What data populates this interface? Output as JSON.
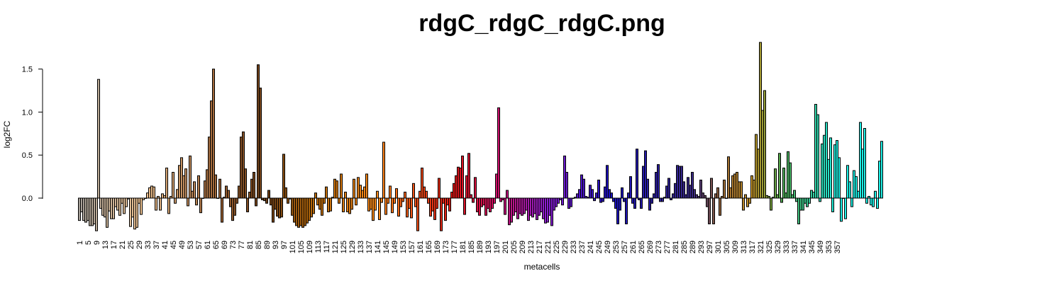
{
  "chart_data": {
    "type": "bar",
    "title": "rdgC_rdgC_rdgC.png",
    "xlabel": "metacells",
    "ylabel": "log2FC",
    "ylim": [
      -0.45,
      1.85
    ],
    "yticks": [
      0.0,
      0.5,
      1.0,
      1.5
    ],
    "ytick_labels": [
      "0.0",
      "0.5",
      "1.0",
      "1.5"
    ],
    "xtick_labels": [
      "1",
      "5",
      "9",
      "13",
      "17",
      "21",
      "25",
      "29",
      "33",
      "37",
      "41",
      "45",
      "49",
      "53",
      "57",
      "61",
      "65",
      "69",
      "73",
      "77",
      "81",
      "85",
      "89",
      "93",
      "97",
      "101",
      "105",
      "109",
      "113",
      "117",
      "121",
      "125",
      "129",
      "133",
      "137",
      "141",
      "145",
      "149",
      "153",
      "157",
      "161",
      "165",
      "169",
      "173",
      "177",
      "181",
      "185",
      "189",
      "193",
      "197",
      "201",
      "205",
      "209",
      "213",
      "217",
      "221",
      "225",
      "229",
      "233",
      "237",
      "241",
      "245",
      "249",
      "253",
      "257",
      "261",
      "265",
      "269",
      "273",
      "277",
      "281",
      "285",
      "289",
      "293",
      "297",
      "301",
      "305",
      "309",
      "313",
      "317",
      "321",
      "325",
      "329",
      "333",
      "337",
      "341",
      "345",
      "349",
      "353",
      "357"
    ],
    "palette_stops": [
      "#a8a29a",
      "#f2c694",
      "#9c6234",
      "#6e3f17",
      "#b86a0a",
      "#ff8c1a",
      "#e01616",
      "#d01068",
      "#8a1ed2",
      "#1a12c2",
      "#3a2a86",
      "#9c6a36",
      "#c89628",
      "#4fa84f",
      "#1ff0e6"
    ],
    "palette_positions": [
      0,
      30,
      66,
      88,
      110,
      140,
      176,
      196,
      220,
      250,
      288,
      302,
      316,
      330,
      357
    ],
    "values": [
      -0.26,
      -0.16,
      -0.26,
      -0.28,
      -0.26,
      -0.32,
      -0.32,
      -0.3,
      -0.38,
      1.38,
      -0.12,
      -0.2,
      -0.22,
      -0.34,
      -0.15,
      -0.24,
      -0.24,
      -0.1,
      -0.14,
      -0.2,
      -0.06,
      -0.18,
      -0.1,
      -0.01,
      -0.33,
      -0.22,
      -0.36,
      -0.34,
      -0.06,
      -0.19,
      -0.02,
      0.0,
      0.06,
      0.12,
      0.14,
      0.13,
      -0.14,
      0.02,
      -0.14,
      0.05,
      0.03,
      0.35,
      -0.18,
      0.02,
      0.3,
      -0.06,
      0.1,
      0.38,
      0.47,
      0.26,
      0.34,
      -0.09,
      0.49,
      0.08,
      0.19,
      -0.08,
      0.26,
      -0.17,
      0.0,
      0.2,
      0.33,
      0.71,
      1.13,
      1.5,
      0.27,
      0.0,
      0.22,
      -0.28,
      0.01,
      0.14,
      0.09,
      -0.1,
      -0.26,
      -0.2,
      -0.06,
      0.14,
      0.71,
      0.77,
      0.34,
      -0.16,
      0.07,
      0.22,
      0.3,
      -0.09,
      1.55,
      1.28,
      -0.02,
      -0.03,
      -0.06,
      0.09,
      -0.08,
      -0.28,
      -0.13,
      -0.21,
      -0.23,
      -0.22,
      0.51,
      0.12,
      -0.06,
      -0.01,
      -0.2,
      -0.28,
      -0.32,
      -0.34,
      -0.32,
      -0.34,
      -0.32,
      -0.29,
      -0.26,
      -0.22,
      -0.18,
      0.06,
      -0.08,
      -0.13,
      -0.2,
      -0.06,
      0.13,
      -0.16,
      -0.15,
      0.01,
      0.22,
      0.2,
      -0.06,
      0.28,
      -0.16,
      0.07,
      -0.16,
      -0.18,
      -0.13,
      0.22,
      -0.08,
      0.24,
      0.15,
      0.09,
      0.13,
      0.28,
      -0.15,
      -0.13,
      -0.26,
      -0.14,
      0.08,
      -0.25,
      -0.05,
      0.65,
      -0.19,
      -0.06,
      0.14,
      -0.17,
      -0.06,
      0.11,
      -0.21,
      -0.1,
      -0.04,
      0.07,
      -0.22,
      -0.12,
      -0.23,
      0.17,
      -0.1,
      -0.38,
      0.08,
      0.35,
      0.13,
      0.08,
      -0.06,
      -0.21,
      -0.15,
      -0.25,
      -0.12,
      0.23,
      -0.38,
      -0.06,
      -0.26,
      -0.08,
      -0.15,
      0.07,
      0.17,
      0.26,
      0.36,
      0.35,
      0.49,
      -0.19,
      0.26,
      0.52,
      0.04,
      -0.05,
      0.24,
      -0.16,
      -0.2,
      -0.1,
      -0.08,
      -0.2,
      -0.12,
      -0.16,
      -0.12,
      -0.06,
      0.28,
      1.05,
      -0.04,
      -0.02,
      -0.19,
      0.09,
      -0.31,
      -0.28,
      -0.2,
      -0.16,
      -0.24,
      -0.18,
      -0.2,
      -0.18,
      -0.14,
      -0.26,
      -0.2,
      -0.22,
      -0.18,
      -0.25,
      -0.2,
      -0.16,
      -0.24,
      -0.29,
      -0.28,
      -0.2,
      -0.32,
      -0.14,
      -0.1,
      -0.06,
      -0.02,
      -0.08,
      0.49,
      0.3,
      -0.12,
      -0.1,
      0.0,
      0.01,
      0.05,
      0.1,
      0.27,
      0.22,
      0.02,
      0.01,
      0.15,
      0.1,
      -0.03,
      0.06,
      0.21,
      -0.05,
      -0.04,
      0.13,
      0.38,
      0.1,
      0.06,
      -0.04,
      -0.12,
      -0.3,
      -0.14,
      0.12,
      -0.04,
      -0.3,
      0.06,
      0.25,
      -0.06,
      -0.12,
      0.57,
      -0.02,
      -0.12,
      0.37,
      0.55,
      0.22,
      -0.14,
      -0.06,
      0.05,
      0.3,
      0.39,
      -0.04,
      -0.04,
      0.01,
      0.14,
      0.23,
      -0.02,
      0.05,
      0.17,
      0.38,
      0.37,
      0.37,
      0.19,
      0.04,
      0.24,
      0.15,
      0.3,
      0.1,
      0.04,
      0.02,
      0.21,
      0.06,
      0.03,
      -0.1,
      -0.3,
      0.23,
      -0.3,
      0.05,
      0.12,
      -0.2,
      0.02,
      0.21,
      0.0,
      0.48,
      0.12,
      0.26,
      0.28,
      0.3,
      0.19,
      0.19,
      -0.14,
      0.04,
      -0.1,
      -0.06,
      0.26,
      0.21,
      0.74,
      0.57,
      1.81,
      1.02,
      1.25,
      0.03,
      0.02,
      -0.14,
      0.01,
      0.34,
      0.04,
      0.52,
      -0.05,
      0.35,
      0.06,
      0.54,
      0.41,
      0.04,
      0.09,
      -0.04,
      -0.3,
      -0.14,
      -0.14,
      -0.06,
      -0.1,
      -0.06,
      0.09,
      0.07,
      1.09,
      0.97,
      -0.04,
      0.63,
      0.73,
      0.88,
      0.45,
      0.7,
      -0.16,
      0.62,
      0.67,
      0.47,
      -0.27,
      0.0,
      -0.24,
      0.38,
      0.19,
      -0.1,
      0.32,
      0.25,
      0.08,
      0.88,
      0.57,
      0.81,
      -0.06,
      0.02,
      -0.08,
      -0.1,
      0.08,
      -0.12,
      0.43,
      0.66
    ]
  }
}
